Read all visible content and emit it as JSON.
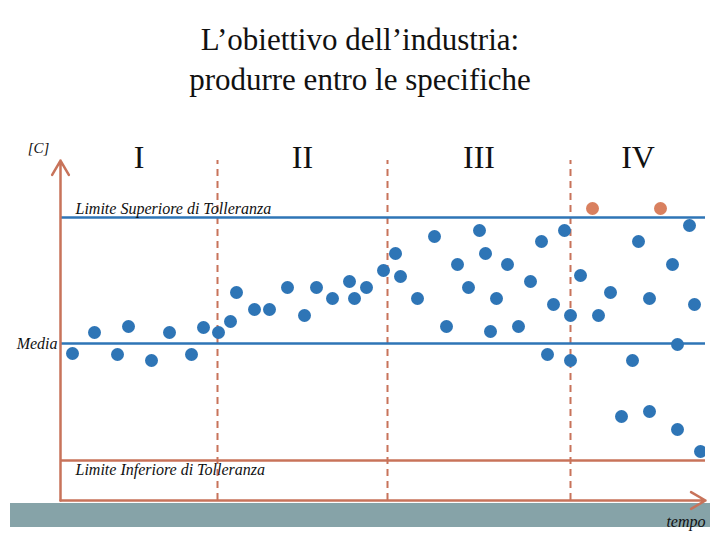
{
  "chart_data": {
    "type": "scatter",
    "title": "L’obiettivo dell’industria:\nprodurre entro le specifiche",
    "y_label": "[C]",
    "x_label": "tempo",
    "phases": [
      "I",
      "II",
      "III",
      "IV"
    ],
    "phase_boundaries": [
      157,
      327,
      510
    ],
    "reference_lines": [
      {
        "label": "Limite Superiore di Tolleranza",
        "value": 310,
        "color": "#2e75b6"
      },
      {
        "label": "Media",
        "value": 184,
        "color": "#2e75b6"
      },
      {
        "label": "Limite Inferiore di Tolleranza",
        "value": 67,
        "color": "#c8735a"
      }
    ],
    "x": [
      12,
      34,
      57,
      68,
      91,
      109,
      131,
      143,
      158,
      170,
      176,
      194,
      209,
      227,
      244,
      256,
      272,
      289,
      294,
      306,
      323,
      335,
      340,
      357,
      374,
      386,
      397,
      408,
      419,
      425,
      430,
      436,
      447,
      458,
      470,
      481,
      487,
      493,
      504,
      510,
      510,
      520,
      532,
      538,
      550,
      561,
      572,
      578,
      589,
      589,
      600,
      612,
      617,
      617,
      629,
      634,
      640
    ],
    "values": [
      174,
      195,
      173,
      201,
      167,
      195,
      173,
      200,
      195,
      206,
      235,
      218,
      218,
      240,
      212,
      240,
      229,
      246,
      229,
      240,
      257,
      274,
      251,
      229,
      291,
      201,
      263,
      240,
      297,
      274,
      196,
      229,
      263,
      201,
      246,
      286,
      173,
      223,
      297,
      167,
      212,
      252,
      319,
      212,
      235,
      111,
      167,
      286,
      116,
      229,
      319,
      263,
      183,
      98,
      302,
      223,
      76
    ],
    "colors": [
      "#2e75b6",
      "#2e75b6",
      "#2e75b6",
      "#2e75b6",
      "#2e75b6",
      "#2e75b6",
      "#2e75b6",
      "#2e75b6",
      "#2e75b6",
      "#2e75b6",
      "#2e75b6",
      "#2e75b6",
      "#2e75b6",
      "#2e75b6",
      "#2e75b6",
      "#2e75b6",
      "#2e75b6",
      "#2e75b6",
      "#2e75b6",
      "#2e75b6",
      "#2e75b6",
      "#2e75b6",
      "#2e75b6",
      "#2e75b6",
      "#2e75b6",
      "#2e75b6",
      "#2e75b6",
      "#2e75b6",
      "#2e75b6",
      "#2e75b6",
      "#2e75b6",
      "#2e75b6",
      "#2e75b6",
      "#2e75b6",
      "#2e75b6",
      "#2e75b6",
      "#2e75b6",
      "#2e75b6",
      "#2e75b6",
      "#2e75b6",
      "#2e75b6",
      "#2e75b6",
      "#d9805f",
      "#2e75b6",
      "#2e75b6",
      "#2e75b6",
      "#2e75b6",
      "#2e75b6",
      "#2e75b6",
      "#2e75b6",
      "#d9805f",
      "#2e75b6",
      "#2e75b6",
      "#2e75b6",
      "#2e75b6",
      "#2e75b6",
      "#2e75b6"
    ],
    "marker": "circle",
    "xlim": [
      0,
      645
    ],
    "ylim": [
      27,
      367
    ],
    "xticks": [],
    "yticks": [],
    "tick_labels": false
  }
}
